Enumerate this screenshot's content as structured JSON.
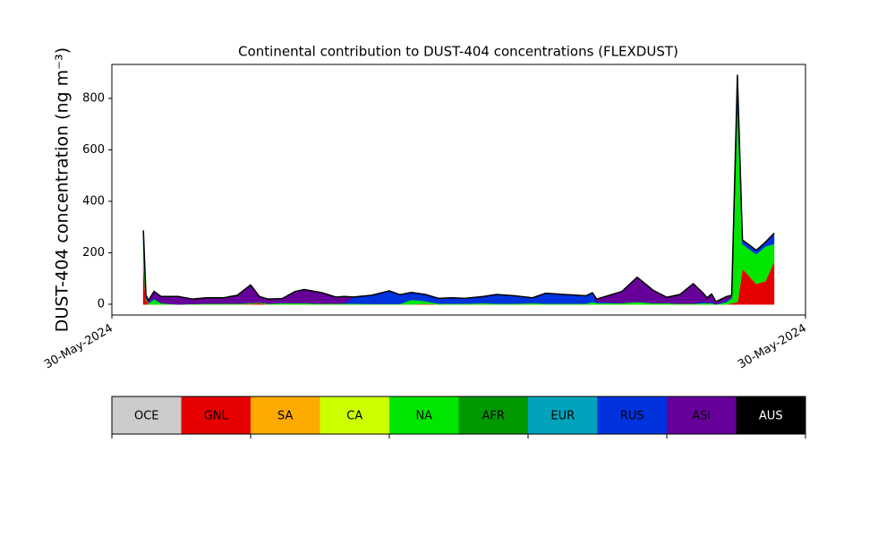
{
  "chart_data": {
    "type": "stacked-area",
    "title": "Continental contribution to DUST-404 concentrations (FLEXDUST)",
    "y_label": "DUST-404 concentration (ng m⁻³)",
    "x": [
      5.0,
      5.4,
      5.8,
      6.7,
      7.8,
      10.6,
      12.8,
      14.9,
      17.7,
      19.9,
      22.0,
      23.4,
      24.8,
      27.0,
      29.1,
      30.5,
      33.3,
      35.5,
      36.9,
      38.3,
      41.2,
      44.0,
      45.7,
      47.5,
      49.7,
      51.8,
      53.9,
      56.0,
      58.9,
      61.0,
      63.9,
      66.7,
      68.8,
      71.7,
      75.2,
      76.2,
      76.9,
      80.9,
      83.3,
      85.8,
      88.0,
      90.1,
      92.2,
      93.7,
      94.4,
      95.1,
      95.8,
      97.5,
      98.3,
      99.2,
      100.0,
      102.2,
      103.6,
      105.0
    ],
    "xlim": [
      0,
      110
    ],
    "xticks": [
      {
        "value": 0,
        "label": "30-May-2024"
      },
      {
        "value": 110,
        "label": "30-May-2024"
      }
    ],
    "ylim": [
      -42,
      932
    ],
    "yticks": [
      0,
      200,
      400,
      600,
      800
    ],
    "series": [
      {
        "name": "OCE",
        "color": "#cccccc",
        "values": [
          0,
          0,
          0,
          0,
          0,
          0,
          0,
          0,
          0,
          0,
          0,
          0,
          0,
          0,
          0,
          0,
          0,
          0,
          0,
          0,
          0,
          0,
          0,
          0,
          0,
          0,
          0,
          0,
          0,
          0,
          0,
          0,
          0,
          0,
          0,
          0,
          0,
          0,
          0,
          0,
          0,
          0,
          0,
          0,
          0,
          0,
          0,
          0,
          0,
          0,
          0,
          0,
          0,
          0
        ]
      },
      {
        "name": "GNL",
        "color": "#e60000",
        "values": [
          150,
          20,
          0,
          0,
          0,
          0,
          0,
          0,
          0,
          0,
          2,
          5,
          0,
          0,
          0,
          0,
          0,
          0,
          0,
          0,
          0,
          0,
          0,
          0,
          3,
          0,
          0,
          0,
          0,
          0,
          0,
          0,
          0,
          0,
          0,
          0,
          0,
          0,
          0,
          0,
          0,
          0,
          0,
          0,
          0,
          0,
          0,
          0,
          5,
          10,
          140,
          80,
          90,
          165
        ]
      },
      {
        "name": "SA",
        "color": "#ffaa00",
        "values": [
          0,
          0,
          0,
          0,
          0,
          0,
          0,
          0,
          0,
          0,
          0,
          0,
          0,
          0,
          0,
          0,
          0,
          0,
          0,
          0,
          0,
          0,
          0,
          0,
          0,
          0,
          0,
          0,
          0,
          0,
          0,
          0,
          0,
          0,
          0,
          0,
          0,
          0,
          0,
          0,
          0,
          0,
          0,
          0,
          0,
          0,
          0,
          0,
          0,
          0,
          0,
          0,
          0,
          0
        ]
      },
      {
        "name": "CA",
        "color": "#ccff00",
        "values": [
          0,
          0,
          0,
          0,
          0,
          0,
          0,
          0,
          0,
          0,
          0,
          0,
          0,
          0,
          0,
          0,
          0,
          0,
          0,
          0,
          0,
          0,
          0,
          0,
          0,
          0,
          0,
          0,
          0,
          0,
          0,
          0,
          0,
          0,
          0,
          0,
          0,
          0,
          0,
          0,
          0,
          0,
          0,
          0,
          0,
          0,
          0,
          0,
          0,
          0,
          0,
          0,
          0,
          0
        ]
      },
      {
        "name": "NA",
        "color": "#00e600",
        "values": [
          90,
          5,
          5,
          20,
          5,
          0,
          2,
          3,
          3,
          3,
          3,
          3,
          3,
          5,
          5,
          5,
          3,
          3,
          3,
          3,
          2,
          2,
          2,
          18,
          10,
          3,
          3,
          3,
          5,
          3,
          3,
          5,
          3,
          3,
          3,
          10,
          5,
          5,
          10,
          5,
          5,
          3,
          3,
          5,
          5,
          5,
          0,
          10,
          20,
          810,
          95,
          115,
          135,
          70
        ]
      },
      {
        "name": "AFR",
        "color": "#009900",
        "values": [
          0,
          0,
          0,
          0,
          0,
          0,
          0,
          0,
          0,
          0,
          0,
          0,
          0,
          0,
          0,
          0,
          0,
          0,
          0,
          0,
          0,
          0,
          0,
          0,
          0,
          0,
          0,
          0,
          0,
          0,
          0,
          0,
          0,
          0,
          0,
          0,
          0,
          0,
          0,
          0,
          0,
          0,
          0,
          0,
          0,
          0,
          0,
          0,
          0,
          0,
          0,
          0,
          0,
          0
        ]
      },
      {
        "name": "EUR",
        "color": "#00a3bb",
        "values": [
          0,
          0,
          0,
          0,
          0,
          0,
          0,
          0,
          0,
          0,
          0,
          0,
          0,
          0,
          0,
          0,
          0,
          0,
          0,
          0,
          0,
          0,
          0,
          0,
          0,
          0,
          0,
          0,
          0,
          0,
          0,
          0,
          0,
          0,
          0,
          0,
          0,
          0,
          0,
          0,
          0,
          0,
          0,
          0,
          0,
          0,
          0,
          0,
          0,
          0,
          0,
          0,
          0,
          0
        ]
      },
      {
        "name": "RUS",
        "color": "#0033dd",
        "values": [
          30,
          5,
          0,
          5,
          0,
          0,
          0,
          0,
          0,
          0,
          0,
          0,
          0,
          0,
          0,
          0,
          0,
          0,
          2,
          25,
          33,
          50,
          35,
          28,
          25,
          20,
          22,
          20,
          25,
          35,
          30,
          20,
          40,
          35,
          30,
          35,
          5,
          0,
          0,
          0,
          0,
          0,
          0,
          5,
          0,
          5,
          0,
          5,
          0,
          50,
          15,
          15,
          15,
          35
        ]
      },
      {
        "name": "ASI",
        "color": "#660099",
        "values": [
          15,
          5,
          10,
          25,
          25,
          30,
          18,
          22,
          22,
          32,
          70,
          22,
          17,
          17,
          45,
          52,
          42,
          25,
          25,
          0,
          0,
          0,
          0,
          0,
          0,
          0,
          0,
          0,
          0,
          0,
          0,
          0,
          0,
          0,
          0,
          0,
          10,
          45,
          95,
          50,
          22,
          35,
          77,
          35,
          20,
          30,
          10,
          15,
          10,
          20,
          0,
          0,
          0,
          5
        ]
      },
      {
        "name": "AUS",
        "color": "#000000",
        "values": [
          0,
          0,
          0,
          0,
          0,
          0,
          0,
          0,
          0,
          0,
          0,
          0,
          0,
          0,
          0,
          0,
          0,
          0,
          0,
          0,
          0,
          0,
          0,
          0,
          0,
          0,
          0,
          0,
          0,
          0,
          0,
          0,
          0,
          0,
          0,
          0,
          0,
          0,
          0,
          0,
          0,
          0,
          0,
          0,
          0,
          0,
          0,
          0,
          0,
          0,
          0,
          0,
          0,
          0
        ]
      }
    ]
  }
}
